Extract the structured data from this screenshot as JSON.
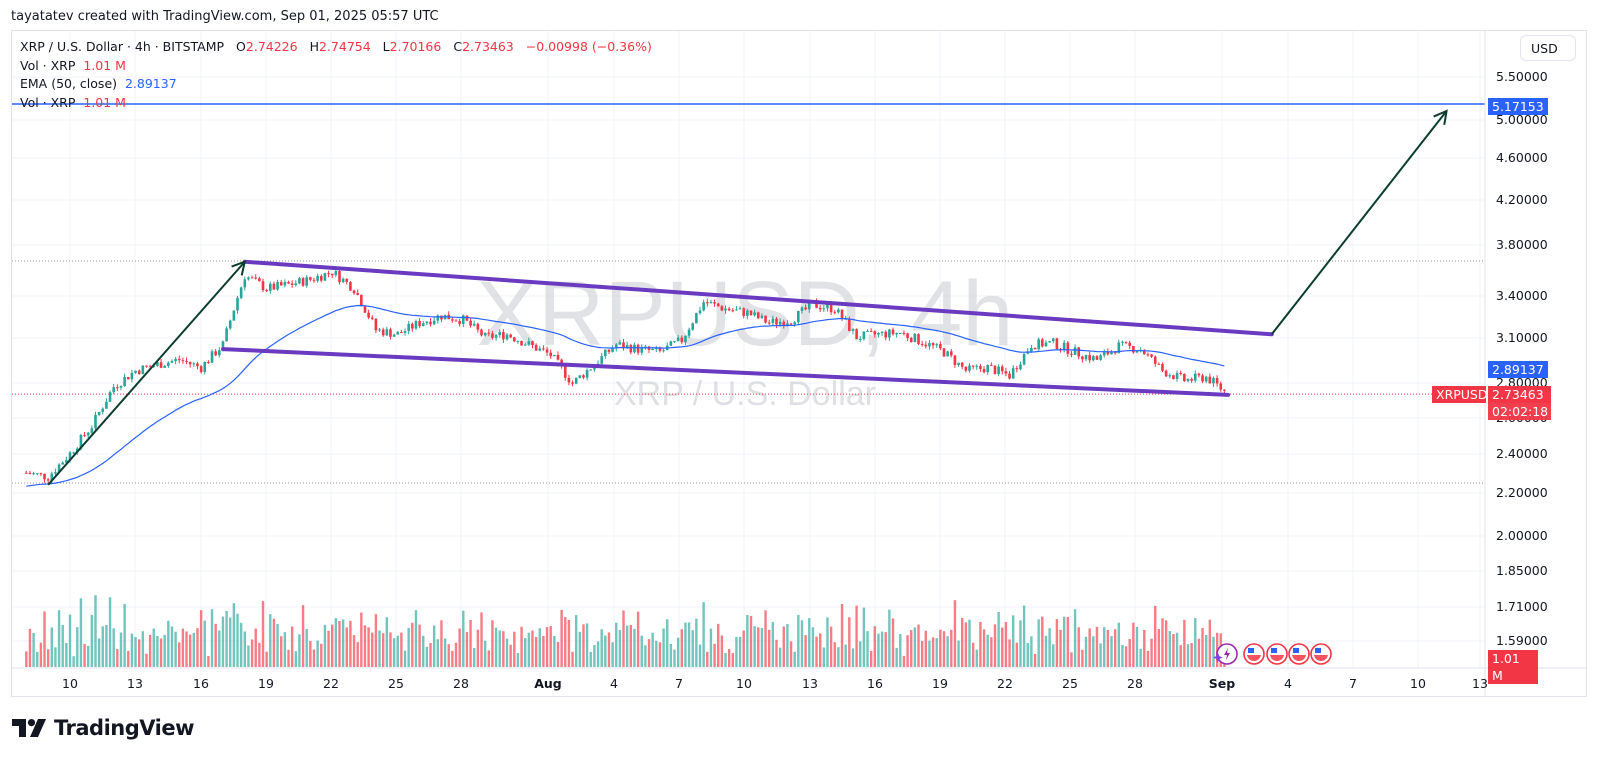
{
  "credit": "tayatatev created with TradingView.com, Sep 01, 2025 05:57 UTC",
  "legend": {
    "symbol_line": "XRP / U.S. Dollar · 4h · BITSTAMP",
    "o_label": "O",
    "o_value": "2.74226",
    "h_label": "H",
    "h_value": "2.74754",
    "l_label": "L",
    "l_value": "2.70166",
    "c_label": "C",
    "c_value": "2.73463",
    "change": "−0.00998 (−0.36%)",
    "vol1_label": "Vol · XRP",
    "vol1_value": "1.01 M",
    "ema_label": "EMA (50, close)",
    "ema_value": "2.89137",
    "vol2_label": "Vol · XRP",
    "vol2_value": "1.01 M"
  },
  "currency_button": "USD",
  "watermark": {
    "main": "XRPUSD, 4h",
    "sub": "XRP / U.S. Dollar"
  },
  "tags": {
    "target_price": "5.17153",
    "ema_price": "2.89137",
    "symbol": "XRPUSD",
    "last_price": "2.73463",
    "countdown": "02:02:18",
    "volume": "1.01 M"
  },
  "brand": "TradingView",
  "colors": {
    "up": "#26a69a",
    "down": "#f23645",
    "ema": "#2962ff",
    "channel": "#6a3bc0",
    "arrow": "#0b3d2e",
    "target_line": "#2962ff"
  },
  "chart_data": {
    "type": "candlestick",
    "title": "XRP / U.S. Dollar · 4h · BITSTAMP",
    "price_axis": {
      "scale": "log",
      "ticks": [
        "5.50000",
        "5.00000",
        "4.60000",
        "4.20000",
        "3.80000",
        "3.40000",
        "3.10000",
        "2.80000",
        "2.60000",
        "2.40000",
        "2.20000",
        "2.00000",
        "1.85000",
        "1.71000",
        "1.59000"
      ]
    },
    "time_axis": {
      "ticks": [
        "10",
        "13",
        "16",
        "19",
        "22",
        "25",
        "28",
        "Aug",
        "4",
        "7",
        "10",
        "13",
        "16",
        "19",
        "22",
        "25",
        "28",
        "Sep",
        "4",
        "7",
        "10",
        "13"
      ]
    },
    "last": {
      "open": 2.74226,
      "high": 2.74754,
      "low": 2.70166,
      "close": 2.73463,
      "change": -0.00998,
      "change_pct": -0.36
    },
    "ema50_last": 2.89137,
    "volume_last": "1.01M",
    "target_level": 5.17153,
    "horizontal_levels_dotted": [
      3.66,
      2.23,
      2.73463
    ],
    "price_path_anchors": [
      {
        "date": "Jul 8",
        "price": 2.3
      },
      {
        "date": "Jul 9",
        "price": 2.28
      },
      {
        "date": "Jul 10",
        "price": 2.4
      },
      {
        "date": "Jul 11",
        "price": 2.55
      },
      {
        "date": "Jul 12",
        "price": 2.78
      },
      {
        "date": "Jul 13",
        "price": 2.88
      },
      {
        "date": "Jul 14",
        "price": 2.92
      },
      {
        "date": "Jul 15",
        "price": 2.95
      },
      {
        "date": "Jul 16",
        "price": 2.9
      },
      {
        "date": "Jul 17",
        "price": 3.05
      },
      {
        "date": "Jul 18",
        "price": 3.55
      },
      {
        "date": "Jul 19",
        "price": 3.45
      },
      {
        "date": "Jul 20",
        "price": 3.48
      },
      {
        "date": "Jul 21",
        "price": 3.52
      },
      {
        "date": "Jul 22",
        "price": 3.58
      },
      {
        "date": "Jul 23",
        "price": 3.45
      },
      {
        "date": "Jul 24",
        "price": 3.15
      },
      {
        "date": "Jul 25",
        "price": 3.12
      },
      {
        "date": "Jul 26",
        "price": 3.2
      },
      {
        "date": "Jul 27",
        "price": 3.25
      },
      {
        "date": "Jul 28",
        "price": 3.22
      },
      {
        "date": "Jul 29",
        "price": 3.1
      },
      {
        "date": "Jul 30",
        "price": 3.12
      },
      {
        "date": "Jul 31",
        "price": 3.05
      },
      {
        "date": "Aug 1",
        "price": 2.98
      },
      {
        "date": "Aug 2",
        "price": 2.8
      },
      {
        "date": "Aug 3",
        "price": 2.92
      },
      {
        "date": "Aug 4",
        "price": 3.05
      },
      {
        "date": "Aug 5",
        "price": 3.02
      },
      {
        "date": "Aug 6",
        "price": 3.0
      },
      {
        "date": "Aug 7",
        "price": 3.08
      },
      {
        "date": "Aug 8",
        "price": 3.35
      },
      {
        "date": "Aug 9",
        "price": 3.3
      },
      {
        "date": "Aug 10",
        "price": 3.27
      },
      {
        "date": "Aug 11",
        "price": 3.2
      },
      {
        "date": "Aug 12",
        "price": 3.22
      },
      {
        "date": "Aug 13",
        "price": 3.33
      },
      {
        "date": "Aug 14",
        "price": 3.3
      },
      {
        "date": "Aug 15",
        "price": 3.1
      },
      {
        "date": "Aug 16",
        "price": 3.12
      },
      {
        "date": "Aug 17",
        "price": 3.13
      },
      {
        "date": "Aug 18",
        "price": 3.07
      },
      {
        "date": "Aug 19",
        "price": 3.0
      },
      {
        "date": "Aug 20",
        "price": 2.88
      },
      {
        "date": "Aug 21",
        "price": 2.9
      },
      {
        "date": "Aug 22",
        "price": 2.85
      },
      {
        "date": "Aug 23",
        "price": 3.05
      },
      {
        "date": "Aug 24",
        "price": 3.06
      },
      {
        "date": "Aug 25",
        "price": 3.0
      },
      {
        "date": "Aug 26",
        "price": 2.95
      },
      {
        "date": "Aug 27",
        "price": 3.04
      },
      {
        "date": "Aug 28",
        "price": 3.02
      },
      {
        "date": "Aug 29",
        "price": 2.88
      },
      {
        "date": "Aug 30",
        "price": 2.82
      },
      {
        "date": "Aug 31",
        "price": 2.84
      },
      {
        "date": "Sep 1",
        "price": 2.73463
      }
    ],
    "annotations": [
      {
        "type": "channel_upper",
        "from": {
          "date": "Jul 18",
          "price": 3.66
        },
        "to": {
          "date": "Sep 3",
          "price": 3.12
        }
      },
      {
        "type": "channel_lower",
        "from": {
          "date": "Jul 17",
          "price": 3.02
        },
        "to": {
          "date": "Sep 1",
          "price": 2.73
        }
      },
      {
        "type": "arrow",
        "from": {
          "date": "Jul 9",
          "price": 2.24
        },
        "to": {
          "date": "Jul 18",
          "price": 3.66
        }
      },
      {
        "type": "arrow",
        "from": {
          "date": "Sep 3",
          "price": 3.12
        },
        "to": {
          "date": "Sep 11",
          "price": 5.1
        }
      }
    ]
  }
}
